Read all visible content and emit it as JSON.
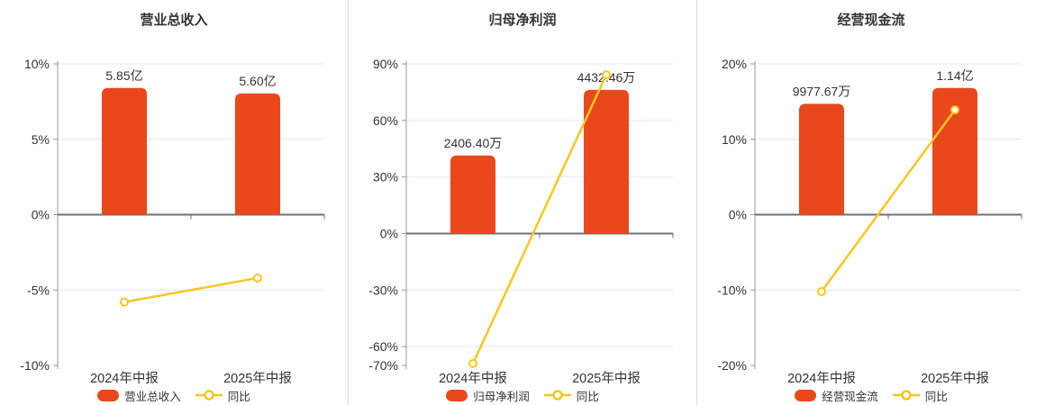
{
  "colors": {
    "bar": "#e8481c",
    "line": "#f5c722",
    "marker_fill": "#ffffff",
    "grid": "#e0e7f2",
    "zero_axis": "#6e7079",
    "axis": "#999999",
    "text": "#333333",
    "divider": "#d9d9d9",
    "background": "#ffffff"
  },
  "chart_data": [
    {
      "type": "bar",
      "subtype": "bar-with-yoy-line",
      "title": "营业总收入",
      "categories": [
        "2024年中报",
        "2025年中报"
      ],
      "bar_series": {
        "name": "营业总收入",
        "value_labels": [
          "5.85亿",
          "5.60亿"
        ],
        "display_values_pct": [
          8.4,
          8.04
        ]
      },
      "line_series": {
        "name": "同比",
        "values_pct": [
          -5.8,
          -4.2
        ]
      },
      "ylim": [
        -10,
        10
      ],
      "yticks": [
        10,
        5,
        0,
        -5,
        -10
      ],
      "ytick_suffix": "%",
      "grid": true,
      "legend_position": "bottom"
    },
    {
      "type": "bar",
      "subtype": "bar-with-yoy-line",
      "title": "归母净利润",
      "categories": [
        "2024年中报",
        "2025年中报"
      ],
      "bar_series": {
        "name": "归母净利润",
        "value_labels": [
          "2406.40万",
          "4432.46万"
        ],
        "display_values_pct": [
          41.4,
          76.2
        ]
      },
      "line_series": {
        "name": "同比",
        "values_pct": [
          -69.0,
          84.2
        ]
      },
      "ylim": [
        -70,
        90
      ],
      "yticks": [
        90,
        60,
        30,
        0,
        -30,
        -60,
        -70
      ],
      "ytick_suffix": "%",
      "grid": true,
      "legend_position": "bottom"
    },
    {
      "type": "bar",
      "subtype": "bar-with-yoy-line",
      "title": "经营现金流",
      "categories": [
        "2024年中报",
        "2025年中报"
      ],
      "bar_series": {
        "name": "经营现金流",
        "value_labels": [
          "9977.67万",
          "1.14亿"
        ],
        "display_values_pct": [
          14.7,
          16.8
        ]
      },
      "line_series": {
        "name": "同比",
        "values_pct": [
          -10.2,
          13.9
        ]
      },
      "ylim": [
        -20,
        20
      ],
      "yticks": [
        20,
        10,
        0,
        -10,
        -20
      ],
      "ytick_suffix": "%",
      "grid": true,
      "legend_position": "bottom"
    }
  ]
}
